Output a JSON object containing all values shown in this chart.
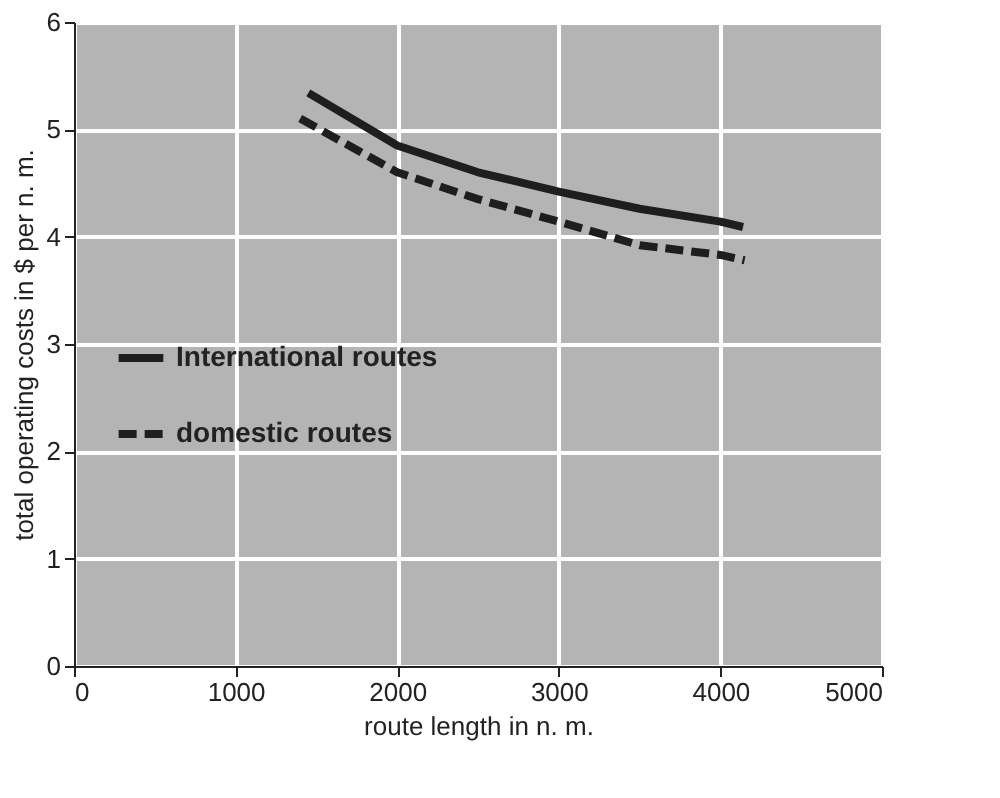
{
  "chart_data": {
    "type": "line",
    "xlabel": "route length in n. m.",
    "ylabel": "total operating costs in $ per n. m.",
    "xlim": [
      0,
      5000
    ],
    "xticks": [
      0,
      1000,
      2000,
      3000,
      4000,
      5000
    ],
    "ylim": [
      0,
      6
    ],
    "yticks": [
      0,
      1,
      2,
      3,
      4,
      5,
      6
    ],
    "grid": true,
    "legend": "left",
    "marker": "none",
    "series": [
      {
        "name": "International routes",
        "color": "#1e1e1e",
        "line_style": "solid",
        "x": [
          1450,
          2000,
          2500,
          3000,
          3500,
          4000,
          4140
        ],
        "values": [
          5.34,
          4.85,
          4.6,
          4.42,
          4.26,
          4.14,
          4.09
        ]
      },
      {
        "name": "domestic routes",
        "color": "#1e1e1e",
        "line_style": "dashed",
        "x": [
          1400,
          2000,
          2500,
          3000,
          3500,
          4000,
          4150
        ],
        "values": [
          5.1,
          4.6,
          4.35,
          4.14,
          3.92,
          3.83,
          3.78
        ]
      }
    ]
  }
}
